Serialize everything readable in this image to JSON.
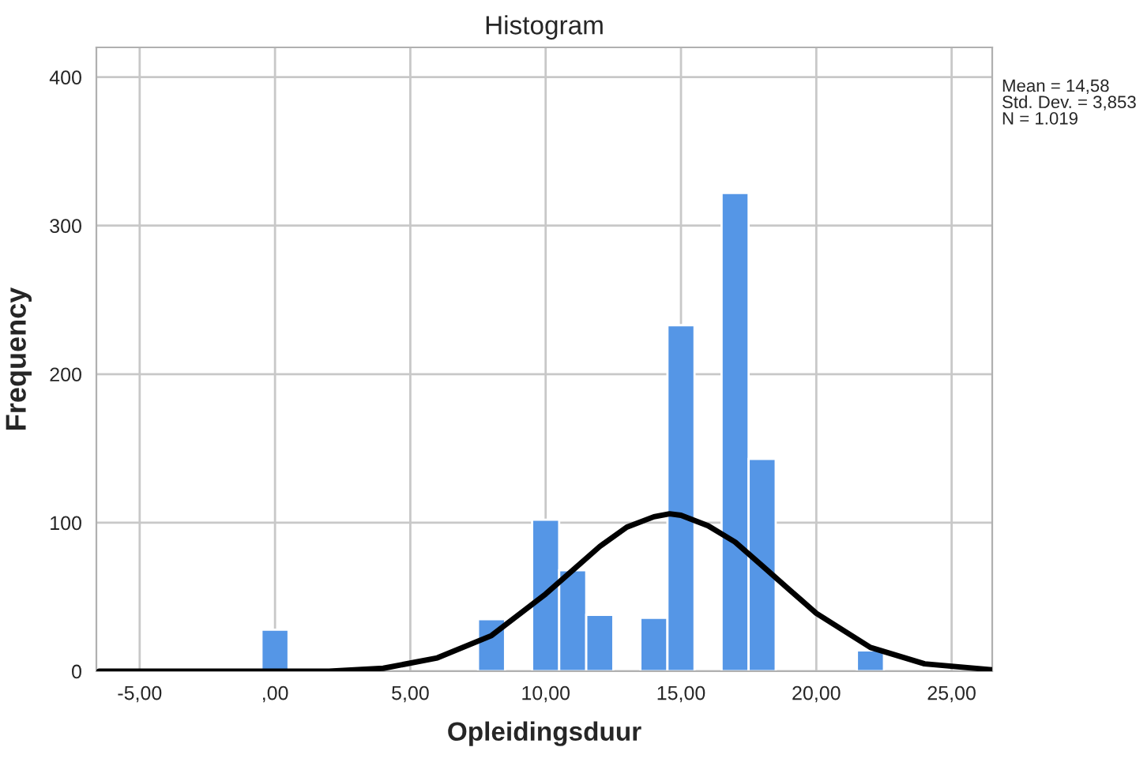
{
  "chart_data": {
    "type": "histogram",
    "title": "Histogram",
    "xlabel": "Opleidingsduur",
    "ylabel": "Frequency",
    "bins": [
      -0.5,
      0.5,
      1.5,
      2.5,
      3.5,
      4.5,
      5.5,
      6.5,
      7.5,
      8.5,
      9.5,
      10.5,
      11.5,
      12.5,
      13.5,
      14.5,
      15.5,
      16.5,
      17.5,
      18.5,
      19.5,
      20.5,
      21.5,
      22.5
    ],
    "values": [
      28,
      0,
      0,
      0,
      0,
      0,
      0,
      0,
      35,
      0,
      102,
      68,
      38,
      0,
      36,
      233,
      0,
      322,
      143,
      0,
      0,
      0,
      14
    ],
    "color": "#5596e6",
    "series": [
      {
        "type": "line",
        "color": "#000000",
        "x": [
          -6.5,
          0,
          2,
          4,
          6,
          8,
          10,
          11,
          12,
          13,
          14,
          14.58,
          15,
          16,
          17,
          18,
          19,
          20,
          22,
          24,
          26.5
        ],
        "values": [
          0,
          0,
          0,
          2,
          9,
          24,
          52,
          68,
          84,
          97,
          104,
          106,
          105,
          98,
          87,
          71,
          55,
          39,
          16,
          5,
          1
        ]
      }
    ],
    "xlim": [
      -6.6,
      26.5
    ],
    "ylim": [
      0,
      420
    ],
    "xticks": [
      {
        "value": -5,
        "label": "-5,00"
      },
      {
        "value": 0,
        "label": ",00"
      },
      {
        "value": 5,
        "label": "5,00"
      },
      {
        "value": 10,
        "label": "10,00"
      },
      {
        "value": 15,
        "label": "15,00"
      },
      {
        "value": 20,
        "label": "20,00"
      },
      {
        "value": 25,
        "label": "25,00"
      }
    ],
    "yticks": [
      0,
      100,
      200,
      300,
      400
    ],
    "grid": true,
    "annotations": [
      "Mean = 14,58\nStd. Dev. = 3,853\nN = 1.019"
    ]
  }
}
